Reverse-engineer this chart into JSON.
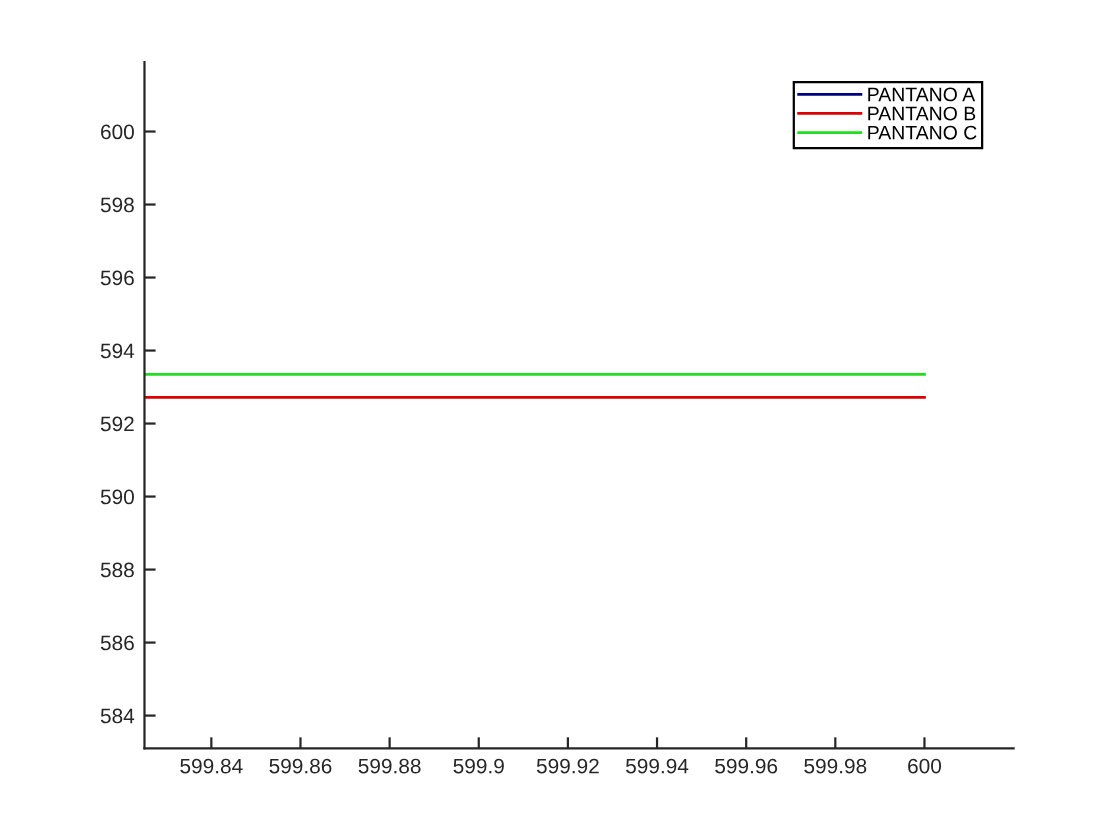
{
  "chart_data": {
    "type": "line",
    "x": [
      599.825,
      600
    ],
    "xlim": [
      599.825,
      600.02
    ],
    "xticks": [
      599.84,
      599.86,
      599.88,
      599.9,
      599.92,
      599.94,
      599.96,
      599.98,
      600
    ],
    "ylim": [
      583.1,
      601.9
    ],
    "yticks": [
      584,
      586,
      588,
      590,
      592,
      594,
      596,
      598,
      600
    ],
    "series": [
      {
        "name": "PANTANO A",
        "color": "#000080",
        "values": [
          null,
          null
        ]
      },
      {
        "name": "PANTANO B",
        "color": "#dd0000",
        "values": [
          592.72,
          592.72
        ]
      },
      {
        "name": "PANTANO C",
        "color": "#22dd22",
        "values": [
          593.35,
          593.35
        ]
      }
    ],
    "legend": "top right",
    "grid": false,
    "marker": "none",
    "line_style": "solid"
  }
}
